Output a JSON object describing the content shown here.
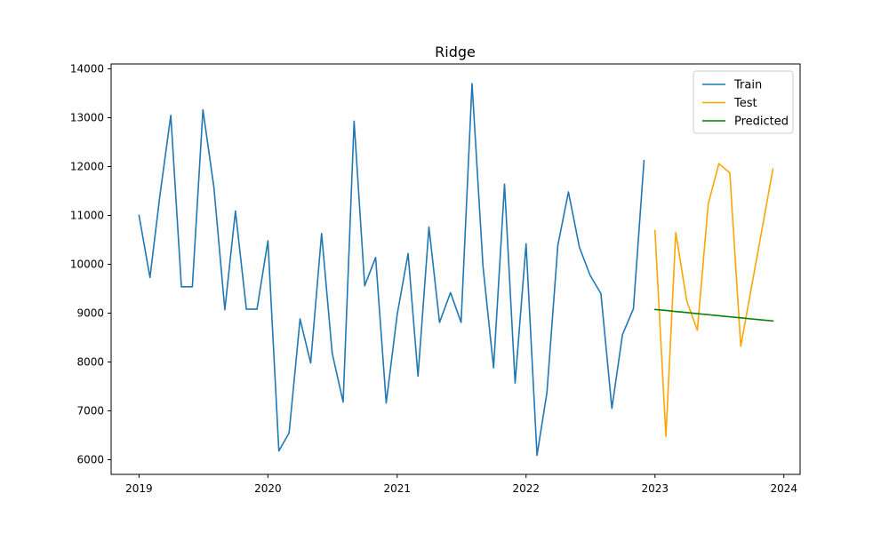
{
  "chart_data": {
    "type": "line",
    "title": "Ridge",
    "xlabel": "",
    "ylabel": "",
    "x_ticks": [
      "2019",
      "2020",
      "2021",
      "2022",
      "2023",
      "2024"
    ],
    "y_ticks": [
      6000,
      7000,
      8000,
      9000,
      10000,
      11000,
      12000,
      13000,
      14000
    ],
    "ylim": [
      5700,
      14100
    ],
    "xlim": [
      "2018-10-14",
      "2024-02-16"
    ],
    "grid": false,
    "legend_position": "top-right",
    "series": [
      {
        "name": "Train",
        "color": "#1f77b4",
        "points": [
          [
            "2019-01-01",
            11000
          ],
          [
            "2019-02-01",
            9730
          ],
          [
            "2019-03-01",
            11400
          ],
          [
            "2019-04-01",
            13050
          ],
          [
            "2019-05-01",
            9540
          ],
          [
            "2019-06-01",
            9540
          ],
          [
            "2019-07-01",
            13160
          ],
          [
            "2019-08-01",
            11580
          ],
          [
            "2019-09-01",
            9070
          ],
          [
            "2019-10-01",
            11090
          ],
          [
            "2019-11-01",
            9080
          ],
          [
            "2019-12-01",
            9080
          ],
          [
            "2020-01-01",
            10480
          ],
          [
            "2020-02-01",
            6180
          ],
          [
            "2020-03-01",
            6550
          ],
          [
            "2020-04-01",
            8880
          ],
          [
            "2020-05-01",
            7980
          ],
          [
            "2020-06-01",
            10630
          ],
          [
            "2020-07-01",
            8180
          ],
          [
            "2020-08-01",
            7180
          ],
          [
            "2020-09-01",
            12930
          ],
          [
            "2020-10-01",
            9560
          ],
          [
            "2020-11-01",
            10140
          ],
          [
            "2020-12-01",
            7160
          ],
          [
            "2021-01-01",
            8970
          ],
          [
            "2021-02-01",
            10220
          ],
          [
            "2021-03-01",
            7710
          ],
          [
            "2021-04-01",
            10760
          ],
          [
            "2021-05-01",
            8810
          ],
          [
            "2021-06-01",
            9420
          ],
          [
            "2021-07-01",
            8810
          ],
          [
            "2021-08-01",
            13700
          ],
          [
            "2021-09-01",
            9960
          ],
          [
            "2021-10-01",
            7880
          ],
          [
            "2021-11-01",
            11640
          ],
          [
            "2021-12-01",
            7570
          ],
          [
            "2022-01-01",
            10420
          ],
          [
            "2022-02-01",
            6090
          ],
          [
            "2022-03-01",
            7370
          ],
          [
            "2022-04-01",
            10390
          ],
          [
            "2022-05-01",
            11480
          ],
          [
            "2022-06-01",
            10350
          ],
          [
            "2022-07-01",
            9780
          ],
          [
            "2022-08-01",
            9400
          ],
          [
            "2022-09-01",
            7050
          ],
          [
            "2022-10-01",
            8560
          ],
          [
            "2022-11-01",
            9090
          ],
          [
            "2022-12-01",
            12120
          ]
        ]
      },
      {
        "name": "Test",
        "color": "#ffa500",
        "points": [
          [
            "2023-01-01",
            10690
          ],
          [
            "2023-02-01",
            6480
          ],
          [
            "2023-03-01",
            10650
          ],
          [
            "2023-04-01",
            9250
          ],
          [
            "2023-05-01",
            8650
          ],
          [
            "2023-06-01",
            11240
          ],
          [
            "2023-07-01",
            12060
          ],
          [
            "2023-08-01",
            11870
          ],
          [
            "2023-09-01",
            8320
          ],
          [
            "2023-10-01",
            9520
          ],
          [
            "2023-11-01",
            10750
          ],
          [
            "2023-12-01",
            11950
          ]
        ]
      },
      {
        "name": "Predicted",
        "color": "#008000",
        "points": [
          [
            "2023-01-01",
            9075
          ],
          [
            "2023-02-01",
            9055
          ],
          [
            "2023-03-01",
            9033
          ],
          [
            "2023-04-01",
            9012
          ],
          [
            "2023-05-01",
            8990
          ],
          [
            "2023-06-01",
            8968
          ],
          [
            "2023-07-01",
            8946
          ],
          [
            "2023-08-01",
            8925
          ],
          [
            "2023-09-01",
            8904
          ],
          [
            "2023-10-01",
            8882
          ],
          [
            "2023-11-01",
            8860
          ],
          [
            "2023-12-01",
            8840
          ]
        ]
      }
    ]
  }
}
